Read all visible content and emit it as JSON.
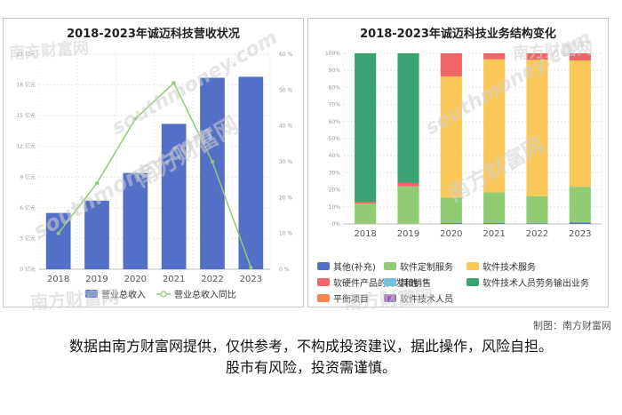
{
  "watermark": {
    "cn": "南方财富网",
    "en": "southmoney.com"
  },
  "credit": "制图：南方财富网",
  "disclaimer": {
    "line1": "数据由南方财富网提供，仅供参考，不构成投资建议，据此操作，风险自担。",
    "line2": "股市有风险，投资需谨慎。"
  },
  "chart_data": [
    {
      "type": "bar",
      "title": "2018-2023年诚迈科技营收状况",
      "categories": [
        "2018",
        "2019",
        "2020",
        "2021",
        "2022",
        "2023"
      ],
      "series": [
        {
          "name": "营业总收入",
          "type": "bar",
          "axis": "left",
          "color": "#5470c6",
          "values": [
            5.5,
            6.7,
            9.4,
            14.2,
            18.7,
            18.8
          ]
        },
        {
          "name": "营业总收入同比",
          "type": "line",
          "axis": "right",
          "color": "#91cc75",
          "values": [
            10,
            24,
            42,
            52,
            30,
            0.5
          ]
        }
      ],
      "left_axis": {
        "ticks": [
          "0 亿元",
          "3 亿元",
          "6 亿元",
          "9 亿元",
          "12 亿元",
          "15 亿元",
          "18 亿元",
          "21 亿元"
        ],
        "ylim": [
          0,
          21
        ]
      },
      "right_axis": {
        "ticks": [
          "0 %",
          "10 %",
          "20 %",
          "30 %",
          "40 %",
          "50 %",
          "60 %"
        ],
        "ylim": [
          0,
          60
        ]
      },
      "grid": true,
      "legend_position": "bottom"
    },
    {
      "type": "bar",
      "stacked": true,
      "title": "2018-2023年诚迈科技业务结构变化",
      "categories": [
        "2018",
        "2019",
        "2020",
        "2021",
        "2022",
        "2023"
      ],
      "y_ticks": [
        "0%",
        "10%",
        "20%",
        "30%",
        "40%",
        "50%",
        "60%",
        "70%",
        "80%",
        "90%",
        "100%"
      ],
      "ylim": [
        0,
        100
      ],
      "series": [
        {
          "name": "其他(补充)",
          "color": "#5470c6",
          "values": [
            0,
            0,
            0.5,
            0.5,
            0.3,
            0.8
          ]
        },
        {
          "name": "软件定制服务",
          "color": "#91cc75",
          "values": [
            12,
            22,
            15,
            18,
            16,
            21
          ]
        },
        {
          "name": "软件技术服务",
          "color": "#fac858",
          "values": [
            0,
            0,
            71,
            78,
            80,
            74
          ]
        },
        {
          "name": "软硬件产品的开发和销售",
          "color": "#ee6666",
          "values": [
            1,
            2,
            13.5,
            3.5,
            3.7,
            4.2
          ]
        },
        {
          "name": "其他",
          "color": "#73c0de",
          "values": [
            0,
            0,
            0,
            0,
            0,
            0
          ]
        },
        {
          "name": "软件技术人员劳务输出业务",
          "color": "#3ba272",
          "values": [
            87,
            76,
            0,
            0,
            0,
            0
          ]
        },
        {
          "name": "平衡项目",
          "color": "#fc8452",
          "values": [
            0,
            0,
            0,
            0,
            0,
            0
          ]
        },
        {
          "name": "软件技术人员",
          "color": "#9a60b4",
          "values": [
            0,
            0,
            0,
            0,
            0,
            0
          ]
        }
      ],
      "grid": true,
      "legend_position": "bottom"
    }
  ]
}
